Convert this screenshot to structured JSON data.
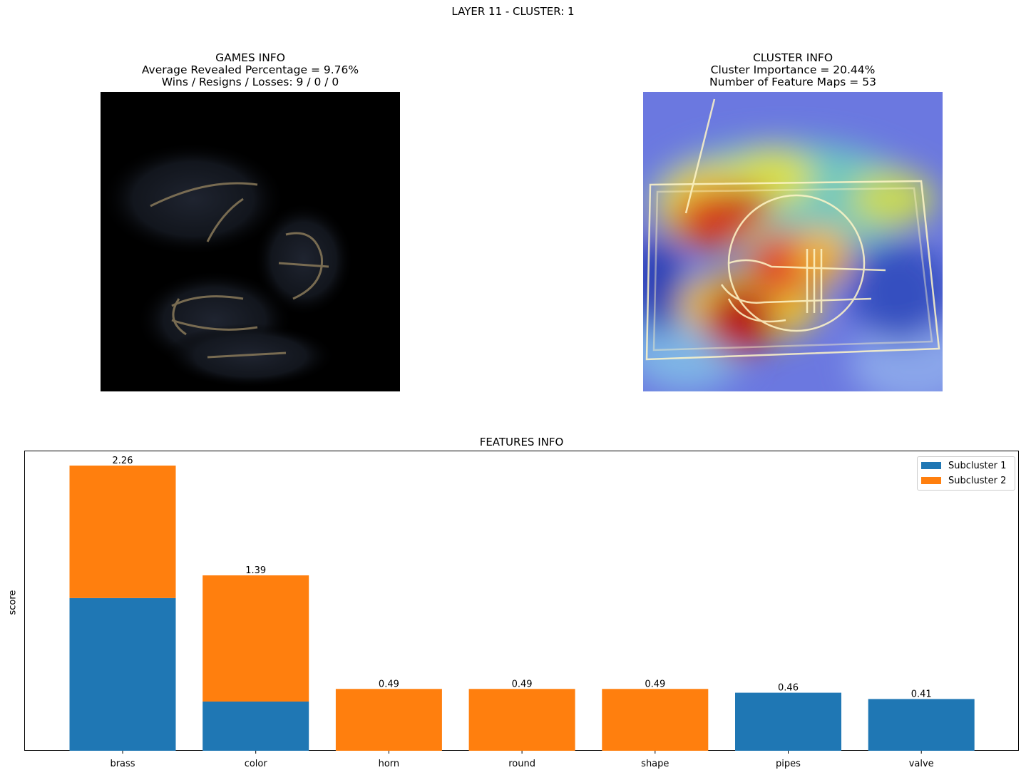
{
  "suptitle": "LAYER 11 - CLUSTER: 1",
  "games": {
    "title": "GAMES INFO",
    "line1": "Average Revealed Percentage = 9.76%",
    "line2": "Wins / Resigns / Losses: 9 / 0 / 0"
  },
  "cluster": {
    "title": "CLUSTER INFO",
    "line1": "Cluster Importance = 20.44%",
    "line2": "Number of Feature Maps = 53"
  },
  "colors": {
    "subcluster1": "#1f77b4",
    "subcluster2": "#ff7f0e"
  },
  "chart_data": {
    "type": "bar",
    "stacked": true,
    "title": "FEATURES INFO",
    "xlabel": "",
    "ylabel": "score",
    "categories": [
      "brass",
      "color",
      "horn",
      "round",
      "shape",
      "pipes",
      "valve"
    ],
    "series": [
      {
        "name": "Subcluster 1",
        "values": [
          1.21,
          0.39,
          0,
          0,
          0,
          0.46,
          0.41
        ]
      },
      {
        "name": "Subcluster 2",
        "values": [
          1.05,
          1.0,
          0.49,
          0.49,
          0.49,
          0,
          0
        ]
      }
    ],
    "totals": [
      "2.26",
      "1.39",
      "0.49",
      "0.49",
      "0.49",
      "0.46",
      "0.41"
    ],
    "ylim": [
      0,
      2.373
    ],
    "yticks_visible": false,
    "grid": false,
    "legend_position": "upper right"
  }
}
